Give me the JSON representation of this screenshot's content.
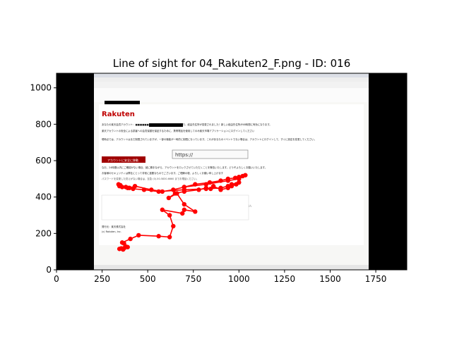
{
  "chart_data": {
    "type": "scatter",
    "title": "Line of sight for 04_Rakuten2_F.png - ID: 016",
    "xlabel": "",
    "ylabel": "",
    "xlim": [
      0,
      1920
    ],
    "ylim": [
      1080,
      0
    ],
    "grid": false,
    "x_ticks": [
      0,
      250,
      500,
      750,
      1000,
      1250,
      1500,
      1750
    ],
    "y_ticks": [
      0,
      200,
      400,
      600,
      800,
      1000
    ],
    "line_color": "#ff0000",
    "marker_color": "#ff0000",
    "background_image": {
      "type": "email-screenshot",
      "x_range": [
        205,
        1715
      ],
      "y_range": [
        0,
        1080
      ],
      "brand": "Rakuten",
      "lines": [
        "あなたの楽天会員アカウント：■■■■■■■■ 。異常なログインが見つかり、経由先住所が変更されました！新しい経由先住所が48時間に有効になります。",
        "楽天アカウントの安全による損害への会員保護を保証するために、携帯電話を使用してのみ楽天市場アプリケーションにログインしてください",
        "現時点では、アカウントはまだ制限されていますが、一部の機能が一時的に制限になっています。これがあなたのイベントでない場合は、アカウントにログインして、すぐに設定を変更してください。",
        "なお、24時間以内にご確認がない場合、誠に勝手ながら、アカウントをロックさせていただくことを警告いたします。どうぞよろしくお願いいたします。",
        "お客様のセキュリティは弊社にとって非常に重要なものでございます。ご理解の程、よろしくお願い申し上げます",
        "パスワードを変更した覚えがない場合は、至急 (0)-50-5830-6660 までお電話ください。",
        "ご注意：",
        "・パスワードは誰にも教えないでください。",
        "・個人情報と関係がなく、推測しにくいパスワードを作成してください。大文字と小文字、数字、および記号を必ず使用してください。",
        "・オンラインアカウントごとに、異なるパスワードを使用してください。",
        "発行元：楽天株式会社",
        "(c) Rakuten, Inc."
      ],
      "button_label": "アカウントに安全に移動",
      "link_label": "https://"
    },
    "series": [
      {
        "x": [
          345,
          355,
          365,
          372,
          380,
          390,
          370,
          360,
          405,
          450,
          560,
          620,
          640,
          620,
          580,
          690,
          700,
          760,
          700,
          660,
          615,
          650,
          700,
          780,
          820,
          845,
          860,
          900,
          940,
          960,
          985,
          1000,
          960,
          940,
          900,
          820,
          700,
          560,
          480,
          420,
          390,
          360,
          345,
          340,
          350,
          380,
          400,
          430,
          520,
          580,
          640,
          700,
          760,
          840,
          900,
          940,
          980,
          1000,
          1020,
          1035,
          1000,
          940,
          820,
          700
        ],
        "y": [
          115,
          118,
          112,
          120,
          128,
          125,
          145,
          150,
          170,
          190,
          185,
          180,
          240,
          300,
          330,
          310,
          330,
          320,
          360,
          420,
          395,
          420,
          430,
          440,
          450,
          445,
          460,
          440,
          450,
          460,
          470,
          480,
          470,
          460,
          450,
          445,
          440,
          430,
          440,
          445,
          450,
          455,
          460,
          470,
          465,
          455,
          450,
          460,
          440,
          430,
          440,
          455,
          470,
          480,
          490,
          500,
          505,
          510,
          515,
          520,
          500,
          490,
          470,
          455
        ]
      }
    ]
  }
}
